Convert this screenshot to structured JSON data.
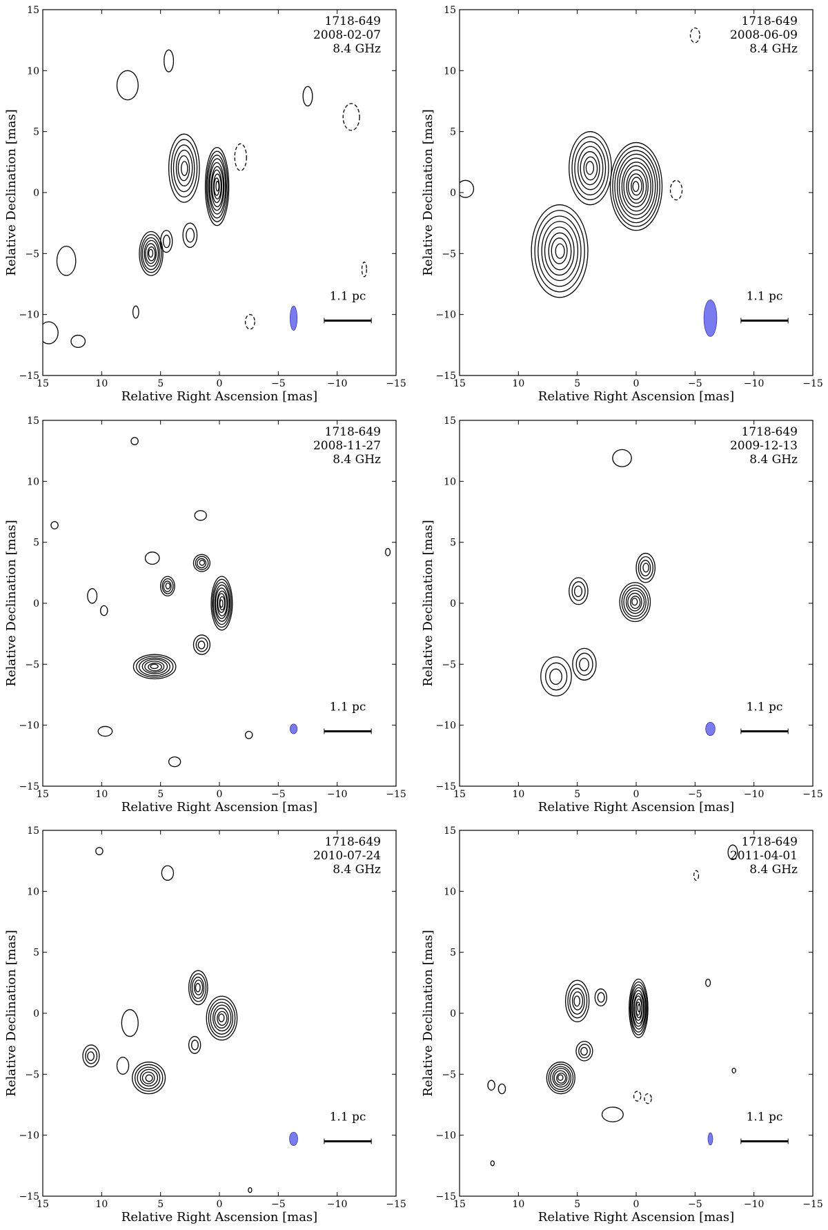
{
  "chart_data": [
    {
      "type": "contour",
      "source": "1718-649",
      "date": "2008-02-07",
      "frequency": "8.4 GHz",
      "xlabel": "Relative Right Ascension [mas]",
      "ylabel": "Relative Declination [mas]",
      "xlim": [
        15,
        -15
      ],
      "ylim": [
        -15,
        15
      ],
      "xticks": [
        15,
        10,
        5,
        0,
        -5,
        -10,
        -15
      ],
      "yticks": [
        -15,
        -10,
        -5,
        0,
        5,
        10,
        15
      ],
      "scalebar_label": "1.1 pc",
      "beam": {
        "x": -6.3,
        "y": -10.3,
        "major": 2.0,
        "minor": 0.6,
        "color": "#7b7bf0"
      },
      "components": [
        {
          "x": 0.2,
          "y": 0.5,
          "sx": 1.0,
          "sy": 3.2,
          "levels": 10
        },
        {
          "x": 3.0,
          "y": 2.0,
          "sx": 1.3,
          "sy": 2.8,
          "levels": 6
        },
        {
          "x": 5.8,
          "y": -5.0,
          "sx": 1.0,
          "sy": 1.8,
          "levels": 7
        },
        {
          "x": 2.5,
          "y": -3.5,
          "sx": 0.6,
          "sy": 1.0,
          "levels": 2
        },
        {
          "x": 4.5,
          "y": -4.0,
          "sx": 0.5,
          "sy": 0.9,
          "levels": 2
        }
      ],
      "islands": [
        {
          "x": 7.8,
          "y": 8.8,
          "sx": 0.9,
          "sy": 1.2
        },
        {
          "x": 4.3,
          "y": 10.8,
          "sx": 0.4,
          "sy": 0.9
        },
        {
          "x": -7.5,
          "y": 7.9,
          "sx": 0.4,
          "sy": 0.8
        },
        {
          "x": 13.0,
          "y": -5.6,
          "sx": 0.8,
          "sy": 1.2
        },
        {
          "x": 7.1,
          "y": -9.8,
          "sx": 0.25,
          "sy": 0.5
        },
        {
          "x": 14.5,
          "y": -11.5,
          "sx": 0.8,
          "sy": 0.9
        },
        {
          "x": 12.0,
          "y": -12.2,
          "sx": 0.6,
          "sy": 0.5
        }
      ],
      "negatives": [
        {
          "x": -1.8,
          "y": 2.9,
          "sx": 0.5,
          "sy": 1.1
        },
        {
          "x": -11.2,
          "y": 6.2,
          "sx": 0.7,
          "sy": 1.1
        },
        {
          "x": -12.3,
          "y": -6.3,
          "sx": 0.2,
          "sy": 0.6
        },
        {
          "x": -2.6,
          "y": -10.6,
          "sx": 0.4,
          "sy": 0.6
        }
      ]
    },
    {
      "type": "contour",
      "source": "1718-649",
      "date": "2008-06-09",
      "frequency": "8.4 GHz",
      "xlabel": "Relative Right Ascension [mas]",
      "ylabel": "Relative Declination [mas]",
      "xlim": [
        15,
        -15
      ],
      "ylim": [
        -15,
        15
      ],
      "xticks": [
        15,
        10,
        5,
        0,
        -5,
        -10,
        -15
      ],
      "yticks": [
        -15,
        -10,
        -5,
        0,
        5,
        10,
        15
      ],
      "scalebar_label": "1.1 pc",
      "beam": {
        "x": -6.3,
        "y": -10.3,
        "major": 3.0,
        "minor": 1.1,
        "color": "#7b7bf0"
      },
      "components": [
        {
          "x": 0.0,
          "y": 0.5,
          "sx": 2.2,
          "sy": 3.6,
          "levels": 11
        },
        {
          "x": 3.9,
          "y": 2.0,
          "sx": 1.8,
          "sy": 3.0,
          "levels": 7
        },
        {
          "x": 6.5,
          "y": -4.8,
          "sx": 2.4,
          "sy": 3.8,
          "levels": 8
        }
      ],
      "islands": [
        {
          "x": 14.5,
          "y": 0.3,
          "sx": 0.7,
          "sy": 0.7
        }
      ],
      "negatives": [
        {
          "x": -5.0,
          "y": 12.9,
          "sx": 0.4,
          "sy": 0.6
        },
        {
          "x": -3.4,
          "y": 0.2,
          "sx": 0.5,
          "sy": 0.8
        }
      ]
    },
    {
      "type": "contour",
      "source": "1718-649",
      "date": "2008-11-27",
      "frequency": "8.4 GHz",
      "xlabel": "Relative Right Ascension [mas]",
      "ylabel": "Relative Declination [mas]",
      "xlim": [
        15,
        -15
      ],
      "ylim": [
        -15,
        15
      ],
      "xticks": [
        15,
        10,
        5,
        0,
        -5,
        -10,
        -15
      ],
      "yticks": [
        -15,
        -10,
        -5,
        0,
        5,
        10,
        15
      ],
      "scalebar_label": "1.1 pc",
      "beam": {
        "x": -6.3,
        "y": -10.3,
        "major": 0.8,
        "minor": 0.6,
        "color": "#7b7bf0"
      },
      "components": [
        {
          "x": -0.2,
          "y": 0.0,
          "sx": 0.9,
          "sy": 2.2,
          "levels": 9
        },
        {
          "x": 5.5,
          "y": -5.2,
          "sx": 1.8,
          "sy": 1.0,
          "levels": 7
        },
        {
          "x": 1.5,
          "y": 3.3,
          "sx": 0.7,
          "sy": 0.7,
          "levels": 4
        },
        {
          "x": 4.4,
          "y": 1.4,
          "sx": 0.6,
          "sy": 0.8,
          "levels": 4
        },
        {
          "x": 1.5,
          "y": -3.4,
          "sx": 0.7,
          "sy": 0.8,
          "levels": 3
        }
      ],
      "islands": [
        {
          "x": 5.7,
          "y": 3.7,
          "sx": 0.6,
          "sy": 0.5
        },
        {
          "x": 1.6,
          "y": 7.2,
          "sx": 0.5,
          "sy": 0.4
        },
        {
          "x": 10.8,
          "y": 0.6,
          "sx": 0.4,
          "sy": 0.6
        },
        {
          "x": 9.8,
          "y": -0.6,
          "sx": 0.3,
          "sy": 0.4
        },
        {
          "x": 14.0,
          "y": 6.4,
          "sx": 0.3,
          "sy": 0.3
        },
        {
          "x": 9.7,
          "y": -10.5,
          "sx": 0.6,
          "sy": 0.4
        },
        {
          "x": 3.8,
          "y": -13.0,
          "sx": 0.5,
          "sy": 0.4
        },
        {
          "x": -2.5,
          "y": -10.8,
          "sx": 0.3,
          "sy": 0.3
        },
        {
          "x": 7.2,
          "y": 13.3,
          "sx": 0.3,
          "sy": 0.3
        },
        {
          "x": -14.3,
          "y": 4.2,
          "sx": 0.2,
          "sy": 0.3
        }
      ],
      "negatives": []
    },
    {
      "type": "contour",
      "source": "1718-649",
      "date": "2009-12-13",
      "frequency": "8.4 GHz",
      "xlabel": "Relative Right Ascension [mas]",
      "ylabel": "Relative Declination [mas]",
      "xlim": [
        15,
        -15
      ],
      "ylim": [
        -15,
        15
      ],
      "xticks": [
        15,
        10,
        5,
        0,
        -5,
        -10,
        -15
      ],
      "yticks": [
        -15,
        -10,
        -5,
        0,
        5,
        10,
        15
      ],
      "scalebar_label": "1.1 pc",
      "beam": {
        "x": -6.3,
        "y": -10.3,
        "major": 1.1,
        "minor": 0.8,
        "color": "#7b7bf0"
      },
      "components": [
        {
          "x": 0.1,
          "y": 0.1,
          "sx": 1.3,
          "sy": 1.6,
          "levels": 7
        },
        {
          "x": -0.8,
          "y": 2.9,
          "sx": 0.8,
          "sy": 1.2,
          "levels": 4
        },
        {
          "x": 4.9,
          "y": 1.0,
          "sx": 0.8,
          "sy": 1.1,
          "levels": 3
        },
        {
          "x": 6.8,
          "y": -6.0,
          "sx": 1.3,
          "sy": 1.6,
          "levels": 3
        },
        {
          "x": 4.4,
          "y": -5.0,
          "sx": 1.0,
          "sy": 1.3,
          "levels": 3
        }
      ],
      "islands": [
        {
          "x": 1.2,
          "y": 11.9,
          "sx": 0.8,
          "sy": 0.7
        }
      ],
      "negatives": []
    },
    {
      "type": "contour",
      "source": "1718-649",
      "date": "2010-07-24",
      "frequency": "8.4 GHz",
      "xlabel": "Relative Right Ascension [mas]",
      "ylabel": "Relative Declination [mas]",
      "xlim": [
        15,
        -15
      ],
      "ylim": [
        -15,
        15
      ],
      "xticks": [
        15,
        10,
        5,
        0,
        -5,
        -10,
        -15
      ],
      "yticks": [
        -15,
        -10,
        -5,
        0,
        5,
        10,
        15
      ],
      "scalebar_label": "1.1 pc",
      "beam": {
        "x": -6.3,
        "y": -10.3,
        "major": 1.1,
        "minor": 0.7,
        "color": "#7b7bf0"
      },
      "components": [
        {
          "x": -0.2,
          "y": -0.4,
          "sx": 1.3,
          "sy": 1.8,
          "levels": 7
        },
        {
          "x": 1.8,
          "y": 2.1,
          "sx": 0.8,
          "sy": 1.4,
          "levels": 5
        },
        {
          "x": 6.0,
          "y": -5.3,
          "sx": 1.4,
          "sy": 1.3,
          "levels": 6
        },
        {
          "x": 10.9,
          "y": -3.5,
          "sx": 0.7,
          "sy": 0.9,
          "levels": 3
        },
        {
          "x": 7.6,
          "y": -0.8,
          "sx": 0.7,
          "sy": 1.1,
          "levels": 1
        },
        {
          "x": 2.1,
          "y": -2.6,
          "sx": 0.5,
          "sy": 0.7,
          "levels": 2
        },
        {
          "x": 8.2,
          "y": -4.3,
          "sx": 0.5,
          "sy": 0.7,
          "levels": 1
        }
      ],
      "islands": [
        {
          "x": 10.2,
          "y": 13.3,
          "sx": 0.3,
          "sy": 0.3
        },
        {
          "x": 4.4,
          "y": 11.5,
          "sx": 0.5,
          "sy": 0.6
        },
        {
          "x": -2.6,
          "y": -14.5,
          "sx": 0.15,
          "sy": 0.2
        }
      ],
      "negatives": []
    },
    {
      "type": "contour",
      "source": "1718-649",
      "date": "2011-04-01",
      "frequency": "8.4 GHz",
      "xlabel": "Relative Right Ascension [mas]",
      "ylabel": "Relative Declination [mas]",
      "xlim": [
        15,
        -15
      ],
      "ylim": [
        -15,
        15
      ],
      "xticks": [
        15,
        10,
        5,
        0,
        -5,
        -10,
        -15
      ],
      "yticks": [
        -15,
        -10,
        -5,
        0,
        5,
        10,
        15
      ],
      "scalebar_label": "1.1 pc",
      "beam": {
        "x": -6.3,
        "y": -10.3,
        "major": 1.0,
        "minor": 0.4,
        "color": "#7b7bf0"
      },
      "components": [
        {
          "x": -0.2,
          "y": 0.4,
          "sx": 0.8,
          "sy": 2.4,
          "levels": 10
        },
        {
          "x": 5.0,
          "y": 1.0,
          "sx": 1.0,
          "sy": 1.7,
          "levels": 5
        },
        {
          "x": 6.4,
          "y": -5.3,
          "sx": 1.2,
          "sy": 1.3,
          "levels": 7
        },
        {
          "x": 4.4,
          "y": -3.1,
          "sx": 0.7,
          "sy": 0.8,
          "levels": 3
        },
        {
          "x": 3.0,
          "y": 1.3,
          "sx": 0.5,
          "sy": 0.7,
          "levels": 2
        },
        {
          "x": 2.0,
          "y": -8.3,
          "sx": 0.9,
          "sy": 0.6,
          "levels": 1
        }
      ],
      "islands": [
        {
          "x": 12.3,
          "y": -5.9,
          "sx": 0.3,
          "sy": 0.4
        },
        {
          "x": 11.4,
          "y": -6.2,
          "sx": 0.3,
          "sy": 0.4
        },
        {
          "x": 12.2,
          "y": -12.3,
          "sx": 0.15,
          "sy": 0.2
        },
        {
          "x": -8.2,
          "y": 13.2,
          "sx": 0.4,
          "sy": 0.6
        },
        {
          "x": -6.1,
          "y": 2.5,
          "sx": 0.2,
          "sy": 0.3
        },
        {
          "x": -8.3,
          "y": -4.7,
          "sx": 0.15,
          "sy": 0.2
        }
      ],
      "negatives": [
        {
          "x": -5.1,
          "y": 11.3,
          "sx": 0.2,
          "sy": 0.4
        },
        {
          "x": -0.1,
          "y": -6.8,
          "sx": 0.3,
          "sy": 0.4
        },
        {
          "x": -1.0,
          "y": -7.0,
          "sx": 0.3,
          "sy": 0.4
        }
      ]
    }
  ]
}
